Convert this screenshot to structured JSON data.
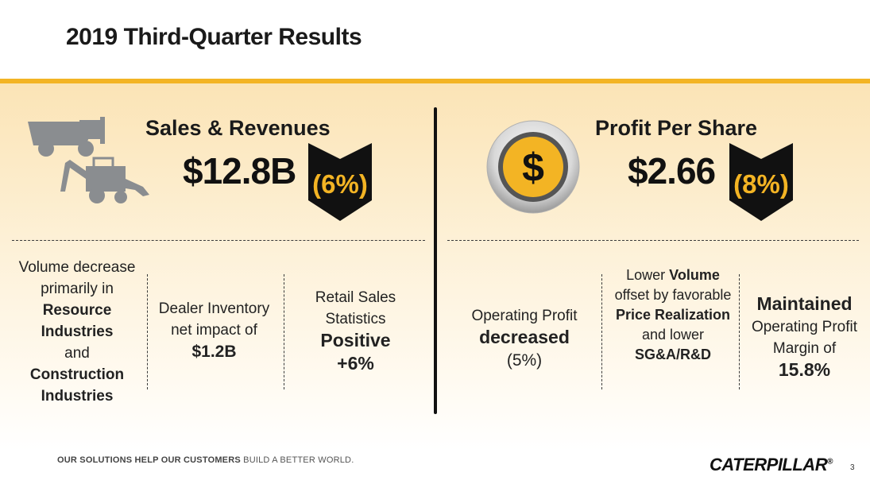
{
  "slide": {
    "title": "2019 Third-Quarter Results",
    "page_number": "3"
  },
  "colors": {
    "accent": "#f3b424",
    "chevron": "#111111",
    "panel_top": "#fbe4b6"
  },
  "sales": {
    "heading": "Sales & Revenues",
    "value": "$12.8B",
    "change": "(6%)",
    "icon": "construction-equipment-icon",
    "bullets": [
      {
        "parts": [
          {
            "t": "Volume decrease primarily in",
            "b": false
          },
          {
            "t": "Resource Industries",
            "b": true
          },
          {
            "t": "and",
            "b": false
          },
          {
            "t": "Construction Industries",
            "b": true
          }
        ]
      },
      {
        "parts": [
          {
            "t": "Dealer Inventory net impact of",
            "b": false
          },
          {
            "t": "$1.2B",
            "b": true
          }
        ]
      },
      {
        "parts": [
          {
            "t": "Retail Sales Statistics",
            "b": false
          },
          {
            "t": "Positive",
            "b": true
          },
          {
            "t": "+6%",
            "b": true
          }
        ]
      }
    ]
  },
  "profit": {
    "heading": "Profit Per Share",
    "value": "$2.66",
    "change": "(8%)",
    "icon": "dollar-coin-icon",
    "bullets": [
      {
        "parts": [
          {
            "t": "Operating Profit",
            "b": false
          },
          {
            "t": "decreased",
            "b": true
          },
          {
            "t": "(5%)",
            "b": false
          }
        ]
      },
      {
        "parts": [
          {
            "t": "Lower",
            "b": false
          },
          {
            "t": "Volume",
            "b": true
          },
          {
            "t": "offset by favorable",
            "b": false
          },
          {
            "t": "Price Realization",
            "b": true
          },
          {
            "t": "and lower",
            "b": false
          },
          {
            "t": "SG&A/R&D",
            "b": true
          }
        ]
      },
      {
        "parts": [
          {
            "t": "Maintained",
            "b": true
          },
          {
            "t": "Operating Profit Margin of",
            "b": false
          },
          {
            "t": "15.8%",
            "b": true
          }
        ]
      }
    ]
  },
  "footer": {
    "tagline_bold": "OUR SOLUTIONS HELP OUR CUSTOMERS",
    "tagline_rest": " BUILD A BETTER WORLD.",
    "logo": "CATERPILLAR",
    "logo_mark": "®"
  }
}
